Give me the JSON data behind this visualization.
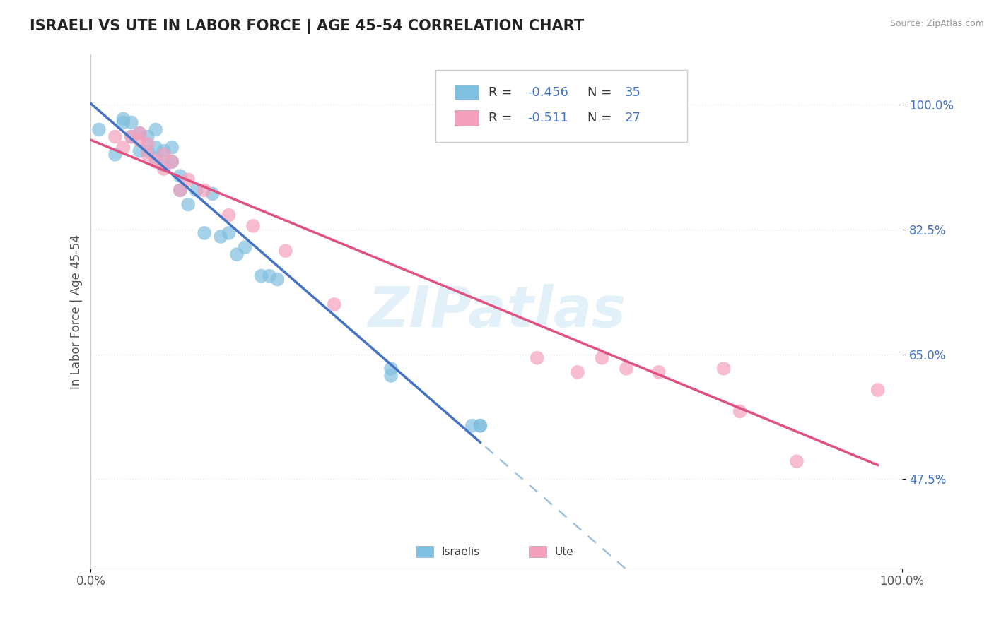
{
  "title": "ISRAELI VS UTE IN LABOR FORCE | AGE 45-54 CORRELATION CHART",
  "source": "Source: ZipAtlas.com",
  "ylabel": "In Labor Force | Age 45-54",
  "xlim": [
    0.0,
    1.0
  ],
  "ylim": [
    0.35,
    1.07
  ],
  "ytick_vals": [
    0.475,
    0.65,
    0.825,
    1.0
  ],
  "ytick_labels": [
    "47.5%",
    "65.0%",
    "82.5%",
    "100.0%"
  ],
  "xtick_vals": [
    0.0,
    1.0
  ],
  "xtick_labels": [
    "0.0%",
    "100.0%"
  ],
  "israeli_color": "#7fbfdf",
  "ute_color": "#f4a0bc",
  "trendline_israeli_color": "#4472c4",
  "trendline_ute_color": "#e05080",
  "trendline_dashed_color": "#a0c0e0",
  "watermark": "ZIPatlas",
  "r_israeli": -0.456,
  "n_israeli": 35,
  "r_ute": -0.511,
  "n_ute": 27,
  "israeli_x": [
    0.01,
    0.03,
    0.04,
    0.04,
    0.05,
    0.05,
    0.06,
    0.06,
    0.07,
    0.07,
    0.08,
    0.08,
    0.08,
    0.09,
    0.09,
    0.1,
    0.1,
    0.11,
    0.11,
    0.12,
    0.13,
    0.14,
    0.15,
    0.16,
    0.17,
    0.18,
    0.19,
    0.21,
    0.22,
    0.23,
    0.37,
    0.37,
    0.47,
    0.48,
    0.48
  ],
  "israeli_y": [
    0.965,
    0.93,
    0.975,
    0.98,
    0.955,
    0.975,
    0.935,
    0.96,
    0.935,
    0.955,
    0.925,
    0.94,
    0.965,
    0.915,
    0.935,
    0.92,
    0.94,
    0.88,
    0.9,
    0.86,
    0.88,
    0.82,
    0.875,
    0.815,
    0.82,
    0.79,
    0.8,
    0.76,
    0.76,
    0.755,
    0.62,
    0.63,
    0.55,
    0.55,
    0.55
  ],
  "ute_x": [
    0.03,
    0.04,
    0.05,
    0.06,
    0.06,
    0.07,
    0.07,
    0.08,
    0.09,
    0.09,
    0.1,
    0.11,
    0.12,
    0.14,
    0.17,
    0.2,
    0.24,
    0.3,
    0.55,
    0.6,
    0.63,
    0.66,
    0.7,
    0.78,
    0.8,
    0.87,
    0.97
  ],
  "ute_y": [
    0.955,
    0.94,
    0.955,
    0.95,
    0.96,
    0.93,
    0.945,
    0.92,
    0.91,
    0.93,
    0.92,
    0.88,
    0.895,
    0.88,
    0.845,
    0.83,
    0.795,
    0.72,
    0.645,
    0.625,
    0.645,
    0.63,
    0.625,
    0.63,
    0.57,
    0.5,
    0.6
  ],
  "background_color": "#ffffff",
  "grid_color": "#e8e8e8",
  "title_fontsize": 15,
  "axis_label_fontsize": 12,
  "tick_fontsize": 12
}
